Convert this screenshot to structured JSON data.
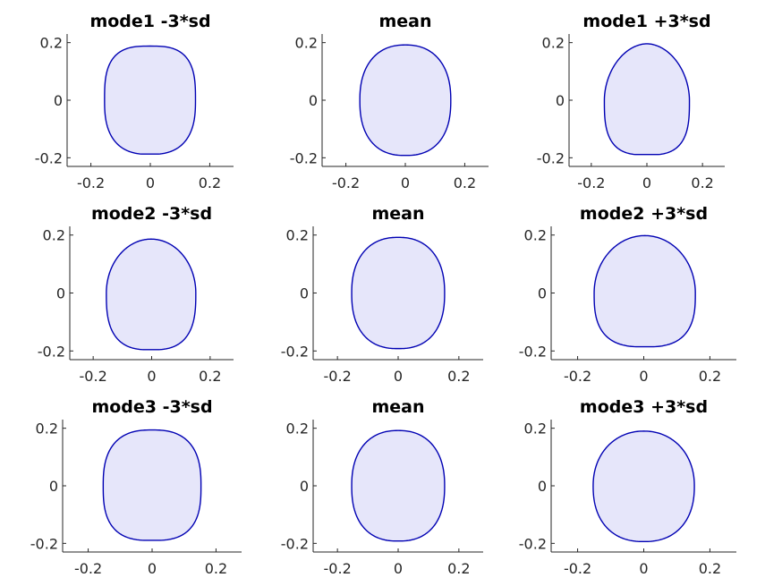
{
  "chart_data": [
    {
      "type": "line",
      "title": "mode1 -3*sd",
      "xlabel": "",
      "ylabel": "",
      "xticks": [
        "-0.2",
        "0",
        "0.2"
      ],
      "yticks": [
        "-0.2",
        "0",
        "0.2"
      ],
      "xlim": [
        -0.28,
        0.28
      ],
      "ylim": [
        -0.23,
        0.23
      ],
      "grid": false,
      "series": [
        {
          "fill": "#e6e6fa",
          "stroke": "#0000b3",
          "shape": {
            "cx": -0.001,
            "cy": 0.0,
            "rx": 0.153,
            "top": 0.188,
            "bottom": -0.188,
            "pt": 3.0,
            "pb": 2.6,
            "top_flatten": 0.0,
            "bottom_flatten": 0.25
          }
        }
      ]
    },
    {
      "type": "line",
      "title": "mean",
      "xlabel": "",
      "ylabel": "",
      "xticks": [
        "-0.2",
        "0",
        "0.2"
      ],
      "yticks": [
        "-0.2",
        "0",
        "0.2"
      ],
      "xlim": [
        -0.28,
        0.28
      ],
      "ylim": [
        -0.23,
        0.23
      ],
      "grid": false,
      "series": [
        {
          "fill": "#e6e6fa",
          "stroke": "#0000b3",
          "shape": {
            "cx": 0.0,
            "cy": 0.0,
            "rx": 0.153,
            "top": 0.192,
            "bottom": -0.192,
            "pt": 2.3,
            "pb": 2.4,
            "top_flatten": 0.0,
            "bottom_flatten": 0.05
          }
        }
      ]
    },
    {
      "type": "line",
      "title": "mode1 +3*sd",
      "xlabel": "",
      "ylabel": "",
      "xticks": [
        "-0.2",
        "0",
        "0.2"
      ],
      "yticks": [
        "-0.2",
        "0",
        "0.2"
      ],
      "xlim": [
        -0.28,
        0.28
      ],
      "ylim": [
        -0.23,
        0.23
      ],
      "grid": false,
      "series": [
        {
          "fill": "#e6e6fa",
          "stroke": "#0000b3",
          "shape": {
            "cx": 0.0,
            "cy": 0.0,
            "rx": 0.153,
            "top": 0.196,
            "bottom": -0.19,
            "pt": 1.9,
            "pb": 3.0,
            "top_flatten": 0.0,
            "bottom_flatten": 0.35
          }
        }
      ]
    },
    {
      "type": "line",
      "title": "mode2 -3*sd",
      "xlabel": "",
      "ylabel": "",
      "xticks": [
        "-0.2",
        "0",
        "0.2"
      ],
      "yticks": [
        "-0.2",
        "0",
        "0.2"
      ],
      "xlim": [
        -0.28,
        0.28
      ],
      "ylim": [
        -0.23,
        0.23
      ],
      "grid": false,
      "series": [
        {
          "fill": "#e6e6fa",
          "stroke": "#0000b3",
          "shape": {
            "cx": -0.002,
            "cy": 0.0,
            "rx": 0.153,
            "top": 0.186,
            "bottom": -0.196,
            "pt": 2.0,
            "pb": 2.8,
            "top_flatten": 0.0,
            "bottom_flatten": 0.15
          }
        }
      ]
    },
    {
      "type": "line",
      "title": "mean",
      "xlabel": "",
      "ylabel": "",
      "xticks": [
        "-0.2",
        "0",
        "0.2"
      ],
      "yticks": [
        "-0.2",
        "0",
        "0.2"
      ],
      "xlim": [
        -0.28,
        0.28
      ],
      "ylim": [
        -0.23,
        0.23
      ],
      "grid": false,
      "series": [
        {
          "fill": "#e6e6fa",
          "stroke": "#0000b3",
          "shape": {
            "cx": 0.0,
            "cy": 0.0,
            "rx": 0.153,
            "top": 0.192,
            "bottom": -0.192,
            "pt": 2.3,
            "pb": 2.4,
            "top_flatten": 0.0,
            "bottom_flatten": 0.05
          }
        }
      ]
    },
    {
      "type": "line",
      "title": "mode2 +3*sd",
      "xlabel": "",
      "ylabel": "",
      "xticks": [
        "-0.2",
        "0",
        "0.2"
      ],
      "yticks": [
        "-0.2",
        "0",
        "0.2"
      ],
      "xlim": [
        -0.28,
        0.28
      ],
      "ylim": [
        -0.23,
        0.23
      ],
      "grid": false,
      "series": [
        {
          "fill": "#e6e6fa",
          "stroke": "#0000b3",
          "shape": {
            "cx": 0.003,
            "cy": 0.0,
            "rx": 0.153,
            "top": 0.198,
            "bottom": -0.186,
            "pt": 2.0,
            "pb": 2.8,
            "top_flatten": 0.0,
            "bottom_flatten": 0.15
          }
        }
      ]
    },
    {
      "type": "line",
      "title": "mode3 -3*sd",
      "xlabel": "",
      "ylabel": "",
      "xticks": [
        "-0.2",
        "0",
        "0.2"
      ],
      "yticks": [
        "-0.2",
        "0",
        "0.2"
      ],
      "xlim": [
        -0.28,
        0.28
      ],
      "ylim": [
        -0.23,
        0.23
      ],
      "grid": false,
      "series": [
        {
          "fill": "#e6e6fa",
          "stroke": "#0000b3",
          "shape": {
            "cx": 0.0,
            "cy": 0.0,
            "rx": 0.153,
            "top": 0.194,
            "bottom": -0.19,
            "pt": 2.6,
            "pb": 2.8,
            "top_flatten": 0.0,
            "bottom_flatten": 0.2
          }
        }
      ]
    },
    {
      "type": "line",
      "title": "mean",
      "xlabel": "",
      "ylabel": "",
      "xticks": [
        "-0.2",
        "0",
        "0.2"
      ],
      "yticks": [
        "-0.2",
        "0",
        "0.2"
      ],
      "xlim": [
        -0.28,
        0.28
      ],
      "ylim": [
        -0.23,
        0.23
      ],
      "grid": false,
      "series": [
        {
          "fill": "#e6e6fa",
          "stroke": "#0000b3",
          "shape": {
            "cx": 0.0,
            "cy": 0.0,
            "rx": 0.153,
            "top": 0.192,
            "bottom": -0.192,
            "pt": 2.3,
            "pb": 2.4,
            "top_flatten": 0.0,
            "bottom_flatten": 0.05
          }
        }
      ]
    },
    {
      "type": "line",
      "title": "mode3 +3*sd",
      "xlabel": "",
      "ylabel": "",
      "xticks": [
        "-0.2",
        "0",
        "0.2"
      ],
      "yticks": [
        "-0.2",
        "0",
        "0.2"
      ],
      "xlim": [
        -0.28,
        0.28
      ],
      "ylim": [
        -0.23,
        0.23
      ],
      "grid": false,
      "series": [
        {
          "fill": "#e6e6fa",
          "stroke": "#0000b3",
          "shape": {
            "cx": 0.0,
            "cy": 0.0,
            "rx": 0.153,
            "top": 0.19,
            "bottom": -0.194,
            "pt": 2.1,
            "pb": 2.3,
            "top_flatten": 0.0,
            "bottom_flatten": 0.1
          }
        }
      ]
    }
  ]
}
